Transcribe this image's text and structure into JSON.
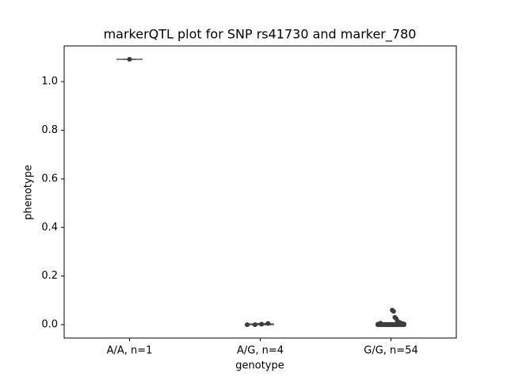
{
  "chart_data": {
    "type": "box-strip",
    "title": "markerQTL plot for SNP rs41730 and marker_780",
    "x_label": "genotype",
    "y_label": "phenotype",
    "categories": [
      "A/A, n=1",
      "A/G, n=4",
      "G/G, n=54"
    ],
    "boxes": [
      {
        "whislo": 1.092,
        "q1": 1.092,
        "median": 1.092,
        "q3": 1.092,
        "whishi": 1.092
      },
      {
        "whislo": 0.0,
        "q1": 0.0,
        "median": 0.001,
        "q3": 0.003,
        "whishi": 0.005
      },
      {
        "whislo": 0.0,
        "q1": 0.0,
        "median": 0.0,
        "q3": 0.003,
        "whishi": 0.008
      }
    ],
    "points": [
      [
        1.092
      ],
      [
        0.0,
        0.005,
        0.002,
        0.0
      ],
      [
        0.0,
        0.0,
        0.06,
        0.0,
        0.0,
        0.0,
        0.055,
        0.0,
        0.0,
        0.0,
        0.03,
        0.0,
        0.0,
        0.0,
        0.025,
        0.0,
        0.0,
        0.0,
        0.015,
        0.0,
        0.0,
        0.0,
        0.01,
        0.0,
        0.0,
        0.0,
        0.008,
        0.0,
        0.0,
        0.0,
        0.005,
        0.0,
        0.0,
        0.0,
        0.004,
        0.0,
        0.0,
        0.0,
        0.003,
        0.0,
        0.0,
        0.0,
        0.002,
        0.0,
        0.0,
        0.0,
        0.001,
        0.0,
        0.0,
        0.0,
        0.006,
        0.0,
        0.0,
        0.0
      ]
    ],
    "box_color": "#595959",
    "point_color": "#3d3d3d",
    "ylim": [
      -0.055,
      1.147
    ],
    "yticks": [
      {
        "value": 0,
        "label": "0.0"
      },
      {
        "value": 0.2,
        "label": "0.2"
      },
      {
        "value": 0.4,
        "label": "0.4"
      },
      {
        "value": 0.6,
        "label": "0.6"
      },
      {
        "value": 0.8,
        "label": "0.8"
      },
      {
        "value": 1,
        "label": "1.0"
      }
    ],
    "grid": false
  }
}
